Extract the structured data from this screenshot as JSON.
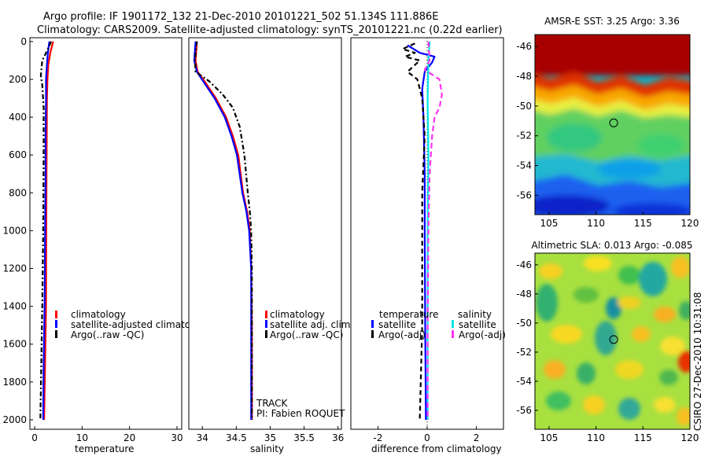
{
  "header": {
    "line1": "Argo profile: IF 1901172_132 21-Dec-2010 20101221_502 51.134S 111.886E",
    "line2": "Climatology: CARS2009. Satellite-adjusted climatology: synTS_20101221.nc (0.22d earlier)"
  },
  "colors": {
    "red": "#ff0000",
    "blue": "#0000ff",
    "black": "#000000",
    "cyan": "#00e5e5",
    "magenta": "#ff33ee"
  },
  "chart_data": [
    {
      "type": "line",
      "xlabel": "temperature",
      "xlim": [
        -1,
        31
      ],
      "xticks": [
        0,
        10,
        20,
        30
      ],
      "ylim": [
        2050,
        -20
      ],
      "yticks": [
        0,
        200,
        400,
        600,
        800,
        1000,
        1200,
        1400,
        1600,
        1800,
        2000
      ],
      "series": [
        {
          "name": "climatology",
          "color": "red",
          "dash": "",
          "points": [
            [
              3.9,
              0
            ],
            [
              3.3,
              60
            ],
            [
              2.9,
              120
            ],
            [
              2.7,
              200
            ],
            [
              2.6,
              300
            ],
            [
              2.55,
              500
            ],
            [
              2.5,
              700
            ],
            [
              2.45,
              1000
            ],
            [
              2.4,
              1400
            ],
            [
              2.2,
              1700
            ],
            [
              2.0,
              2000
            ]
          ]
        },
        {
          "name": "satellite-adjusted climatology",
          "color": "blue",
          "dash": "",
          "points": [
            [
              3.1,
              0
            ],
            [
              2.8,
              60
            ],
            [
              2.6,
              120
            ],
            [
              2.4,
              200
            ],
            [
              2.4,
              300
            ],
            [
              2.3,
              500
            ],
            [
              2.3,
              700
            ],
            [
              2.2,
              1000
            ],
            [
              2.1,
              1400
            ],
            [
              1.9,
              1700
            ],
            [
              1.8,
              2000
            ]
          ]
        },
        {
          "name": "Argo(..raw -QC)",
          "color": "black",
          "dash": "6,3,2,3",
          "points": [
            [
              3.5,
              0
            ],
            [
              2.6,
              50
            ],
            [
              1.6,
              100
            ],
            [
              1.3,
              180
            ],
            [
              1.6,
              230
            ],
            [
              1.9,
              350
            ],
            [
              1.9,
              600
            ],
            [
              1.8,
              1000
            ],
            [
              1.6,
              1400
            ],
            [
              1.4,
              1700
            ],
            [
              1.2,
              2000
            ]
          ]
        }
      ],
      "legend": [
        "climatology",
        "satellite-adjusted climatolo",
        "Argo(..raw -QC)"
      ]
    },
    {
      "type": "line",
      "xlabel": "salinity",
      "xlim": [
        33.8,
        36.05
      ],
      "xticks": [
        34,
        34.5,
        35,
        35.5,
        36
      ],
      "xticklabels": [
        "34",
        "34.5",
        "35",
        "35.5",
        "36"
      ],
      "ylim": [
        2050,
        -20
      ],
      "series": [
        {
          "name": "climatology",
          "color": "red",
          "dash": "",
          "points": [
            [
              33.92,
              0
            ],
            [
              33.9,
              100
            ],
            [
              33.93,
              160
            ],
            [
              34.05,
              220
            ],
            [
              34.2,
              300
            ],
            [
              34.35,
              400
            ],
            [
              34.45,
              500
            ],
            [
              34.53,
              600
            ],
            [
              34.6,
              800
            ],
            [
              34.66,
              900
            ],
            [
              34.7,
              1000
            ],
            [
              34.72,
              1200
            ],
            [
              34.73,
              1500
            ],
            [
              34.73,
              2000
            ]
          ]
        },
        {
          "name": "satellite adj. clim.",
          "color": "blue",
          "dash": "",
          "points": [
            [
              33.9,
              0
            ],
            [
              33.88,
              100
            ],
            [
              33.92,
              160
            ],
            [
              34.03,
              220
            ],
            [
              34.18,
              300
            ],
            [
              34.33,
              400
            ],
            [
              34.43,
              500
            ],
            [
              34.51,
              600
            ],
            [
              34.59,
              800
            ],
            [
              34.65,
              900
            ],
            [
              34.69,
              1000
            ],
            [
              34.72,
              1200
            ],
            [
              34.72,
              1500
            ],
            [
              34.72,
              2000
            ]
          ]
        },
        {
          "name": "Argo(..raw -QC)",
          "color": "black",
          "dash": "6,3,2,3",
          "points": [
            [
              33.92,
              0
            ],
            [
              33.89,
              100
            ],
            [
              33.9,
              160
            ],
            [
              34.1,
              210
            ],
            [
              34.3,
              280
            ],
            [
              34.45,
              350
            ],
            [
              34.55,
              450
            ],
            [
              34.62,
              600
            ],
            [
              34.67,
              800
            ],
            [
              34.7,
              900
            ],
            [
              34.72,
              1000
            ],
            [
              34.73,
              1200
            ],
            [
              34.73,
              1500
            ],
            [
              34.73,
              2000
            ]
          ]
        }
      ],
      "legend": [
        "climatology",
        "satellite adj. clim.",
        "Argo(..raw -QC)"
      ],
      "annotation": [
        "TRACK",
        "PI: Fabien ROQUET"
      ]
    },
    {
      "type": "line",
      "xlabel": "difference from climatology",
      "xlim": [
        -3.1,
        3.1
      ],
      "xticks": [
        -2,
        0,
        2
      ],
      "ylim": [
        2050,
        -20
      ],
      "series": [
        {
          "name": "temperature satellite",
          "color": "blue",
          "dash": "",
          "points": [
            [
              -0.8,
              20
            ],
            [
              -0.3,
              60
            ],
            [
              0.3,
              80
            ],
            [
              0.2,
              110
            ],
            [
              -0.1,
              160
            ],
            [
              -0.2,
              250
            ],
            [
              -0.15,
              400
            ],
            [
              -0.1,
              700
            ],
            [
              -0.1,
              1000
            ],
            [
              -0.08,
              1500
            ],
            [
              -0.05,
              2000
            ]
          ]
        },
        {
          "name": "temperature Argo(-adj)",
          "color": "black",
          "dash": "6,4",
          "points": [
            [
              -0.5,
              10
            ],
            [
              -1.0,
              40
            ],
            [
              -0.5,
              60
            ],
            [
              -0.9,
              80
            ],
            [
              -0.3,
              100
            ],
            [
              -0.8,
              160
            ],
            [
              -0.4,
              200
            ],
            [
              -0.2,
              300
            ],
            [
              -0.1,
              500
            ],
            [
              -0.2,
              800
            ],
            [
              -0.2,
              1000
            ],
            [
              -0.2,
              1500
            ],
            [
              -0.3,
              2000
            ]
          ]
        },
        {
          "name": "salinity satellite",
          "color": "cyan",
          "dash": "",
          "points": [
            [
              0.1,
              0
            ],
            [
              0.05,
              100
            ],
            [
              0.02,
              300
            ],
            [
              0.05,
              600
            ],
            [
              0.02,
              1000
            ],
            [
              0.02,
              1500
            ],
            [
              0.02,
              2000
            ]
          ]
        },
        {
          "name": "salinity Argo(-adj)",
          "color": "magenta",
          "dash": "7,4",
          "points": [
            [
              0.05,
              0
            ],
            [
              0.1,
              100
            ],
            [
              -0.1,
              150
            ],
            [
              0.5,
              200
            ],
            [
              0.6,
              280
            ],
            [
              0.5,
              350
            ],
            [
              0.3,
              400
            ],
            [
              0.2,
              500
            ],
            [
              0.1,
              700
            ],
            [
              0.05,
              1000
            ],
            [
              0.02,
              1500
            ],
            [
              0.02,
              2000
            ]
          ]
        }
      ],
      "legend": {
        "temperature_title": "temperature",
        "salinity_title": "salinity",
        "satellite": "satellite",
        "argo": "Argo(-adj)"
      }
    },
    {
      "type": "heatmap",
      "title": "AMSR-E SST: 3.25 Argo: 3.36",
      "xlim": [
        103.5,
        120
      ],
      "xticks": [
        105,
        110,
        115,
        120
      ],
      "ylim": [
        -57.3,
        -45.2
      ],
      "yticks": [
        -46,
        -48,
        -50,
        -52,
        -54,
        -56
      ],
      "marker": [
        111.886,
        -51.134
      ]
    },
    {
      "type": "heatmap",
      "title": "Altimetric SLA: 0.013 Argo: -0.085",
      "xlim": [
        103.5,
        120
      ],
      "xticks": [
        105,
        110,
        115,
        120
      ],
      "ylim": [
        -57.3,
        -45.2
      ],
      "yticks": [
        -46,
        -48,
        -50,
        -52,
        -54,
        -56
      ],
      "marker": [
        111.886,
        -51.134
      ]
    }
  ],
  "side_label": "CSIRO 27-Dec-2010 10:31:08"
}
